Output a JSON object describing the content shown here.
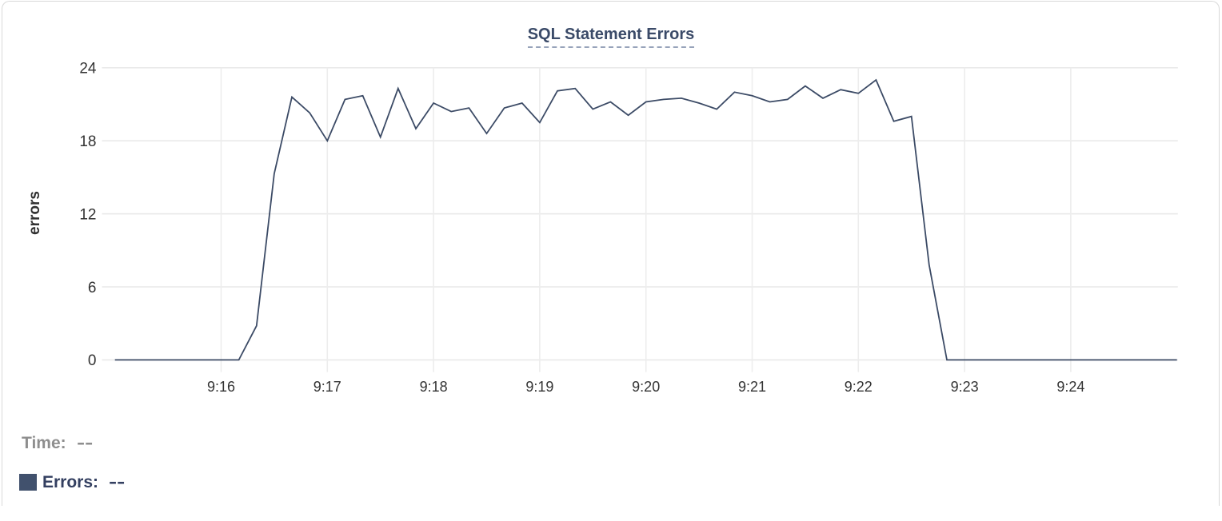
{
  "title": "SQL Statement Errors",
  "legend": {
    "time_label": "Time:",
    "time_value": "--",
    "series_label": "Errors:",
    "series_value": "--"
  },
  "colors": {
    "line": "#3c4b66",
    "title": "#3a4a68",
    "legend_time": "#8e8e8e",
    "legend_series": "#333f60",
    "swatch": "#41516d",
    "grid_horizontal": "#e9e9e9",
    "grid_vertical": "#ededed",
    "tick_label": "#333333",
    "axis_title": "#303030",
    "title_underline": "#97a3ba",
    "card_border": "#d9d9d9"
  },
  "chart_data": {
    "type": "line",
    "title": "SQL Statement Errors",
    "xlabel": "",
    "ylabel": "errors",
    "x_start": "9:15:00",
    "x_step_seconds": 10,
    "x_tick_labels": [
      "9:16",
      "9:17",
      "9:18",
      "9:19",
      "9:20",
      "9:21",
      "9:22",
      "9:23",
      "9:24"
    ],
    "y_tick_labels": [
      "0",
      "6",
      "12",
      "18",
      "24"
    ],
    "y_ticks": [
      0,
      6,
      12,
      18,
      24
    ],
    "ylim": [
      0,
      24
    ],
    "grid": true,
    "legend_position": "bottom-left",
    "series": [
      {
        "name": "Errors",
        "values": [
          0,
          0,
          0,
          0,
          0,
          0,
          0,
          0,
          2.8,
          15.3,
          21.6,
          20.3,
          18,
          21.4,
          21.7,
          18.3,
          22.3,
          19,
          21.1,
          20.4,
          20.7,
          18.6,
          20.7,
          21.1,
          19.5,
          22.1,
          22.3,
          20.6,
          21.2,
          20.1,
          21.2,
          21.4,
          21.5,
          21.1,
          20.6,
          22,
          21.7,
          21.2,
          21.4,
          22.5,
          21.5,
          22.2,
          21.9,
          23,
          19.6,
          20,
          7.8,
          0,
          0,
          0,
          0,
          0,
          0,
          0,
          0,
          0,
          0,
          0,
          0,
          0,
          0
        ]
      }
    ]
  }
}
